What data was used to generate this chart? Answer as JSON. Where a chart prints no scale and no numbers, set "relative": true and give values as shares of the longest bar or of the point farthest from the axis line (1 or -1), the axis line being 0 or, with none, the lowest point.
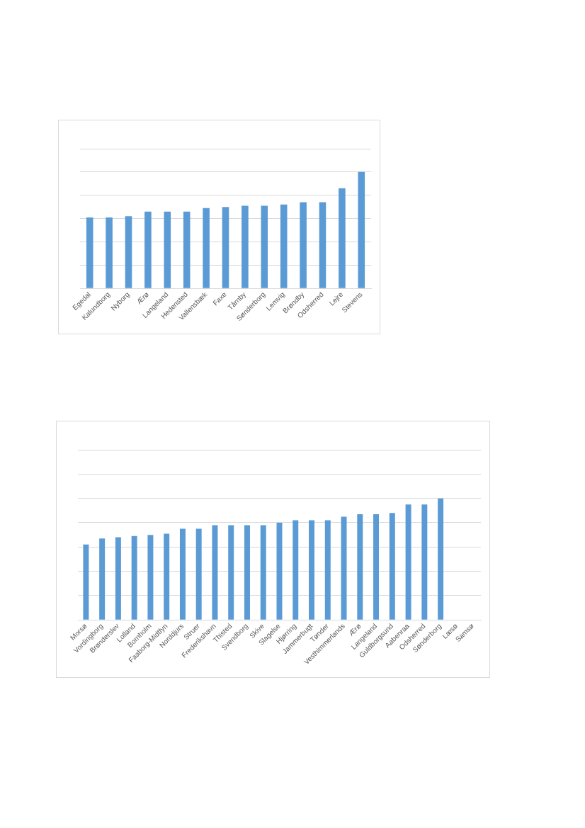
{
  "chart_data": [
    {
      "type": "bar",
      "relative": true,
      "grid": "y",
      "categories": [
        "Egedal",
        "Kalundborg",
        "Nyborg",
        "Ærø",
        "Langeland",
        "Hedensted",
        "Vallensbæk",
        "Faxe",
        "Tårnby",
        "Sønderborg",
        "Lemvig",
        "Brøndby",
        "Odsherred",
        "Lejre",
        "Stevens"
      ],
      "values": [
        0.61,
        0.61,
        0.62,
        0.66,
        0.66,
        0.66,
        0.69,
        0.7,
        0.71,
        0.71,
        0.72,
        0.74,
        0.74,
        0.86,
        1
      ],
      "color": "#5b9bd5"
    },
    {
      "type": "bar",
      "relative": true,
      "grid": "y",
      "categories": [
        "Morsø",
        "Vordingborg",
        "Brønderslev",
        "Lolland",
        "Bornholm",
        "Faaborg-Midtfyn",
        "Norddjurs",
        "Struer",
        "Frederikshavn",
        "Thisted",
        "Svendborg",
        "Skive",
        "Slagelse",
        "Hjørring",
        "Jammerbugt",
        "Tønder",
        "Vesthimmerlands",
        "Ærø",
        "Langeland",
        "Guldborgsund",
        "Aabenraa",
        "Odsherred",
        "Sønderborg",
        "Læsø",
        "Samsø"
      ],
      "values": [
        0.62,
        0.67,
        0.68,
        0.69,
        0.7,
        0.71,
        0.75,
        0.75,
        0.78,
        0.78,
        0.78,
        0.78,
        0.8,
        0.82,
        0.82,
        0.82,
        0.85,
        0.87,
        0.87,
        0.88,
        0.95,
        0.95,
        1,
        null,
        null
      ],
      "color": "#5b9bd5"
    }
  ]
}
